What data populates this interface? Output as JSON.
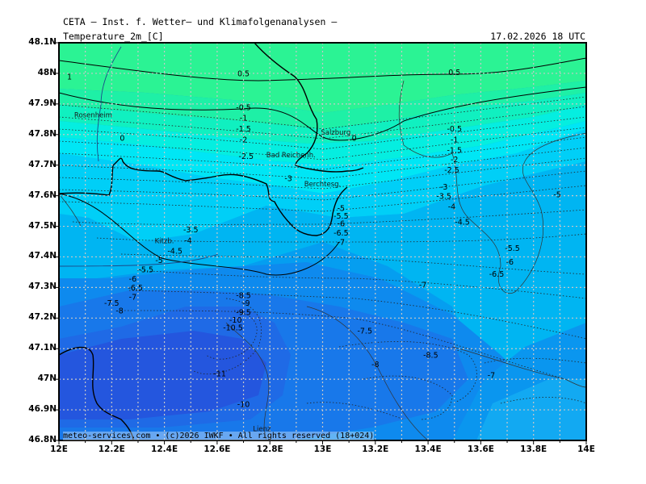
{
  "header": {
    "title": "CETA — Inst. f. Wetter— und Klimafolgenanalysen —",
    "subtitle_left": "Temperature_2m_[C]",
    "subtitle_right": "17.02.2026 18 UTC"
  },
  "footer": {
    "text": "meteo-services.com • (c)2026 IWKF • All rights reserved (18+024)"
  },
  "axes": {
    "lat_labels": [
      "48.1N",
      "48N",
      "47.9N",
      "47.8N",
      "47.7N",
      "47.6N",
      "47.5N",
      "47.4N",
      "47.3N",
      "47.2N",
      "47.1N",
      "47N",
      "46.9N",
      "46.8N"
    ],
    "lon_labels": [
      "12E",
      "12.2E",
      "12.4E",
      "12.6E",
      "12.8E",
      "13E",
      "13.2E",
      "13.4E",
      "13.6E",
      "13.8E",
      "14E"
    ]
  },
  "colors": {
    "band_0_5": "#2bf394",
    "band_0": "#1ef0a6",
    "band_m1": "#10f0c0",
    "band_m2": "#05eee0",
    "band_m3": "#00e6f5",
    "band_m4": "#00cff7",
    "band_m5": "#00b5f2",
    "band_m6": "#059ef0",
    "band_m7": "#0e8aee",
    "band_m8": "#1878ea",
    "band_m9": "#1f6ae6",
    "band_m10": "#2456de",
    "grid": "#c8c8c8",
    "contour": "#000000"
  },
  "places": [
    {
      "name": "Rosenheim",
      "lon": 12.13,
      "lat": 47.856
    },
    {
      "name": "Salzburg",
      "lon": 13.05,
      "lat": 47.8
    },
    {
      "name": "Bad Reichenh.",
      "lon": 12.88,
      "lat": 47.725
    },
    {
      "name": "Berchtesg.",
      "lon": 13.0,
      "lat": 47.63
    },
    {
      "name": "Kitzb.",
      "lon": 12.4,
      "lat": 47.445
    },
    {
      "name": "Lienz",
      "lon": 12.77,
      "lat": 46.83
    }
  ],
  "temp_labels": [
    {
      "text": "1",
      "lon": 12.04,
      "lat": 47.98
    },
    {
      "text": "0.5",
      "lon": 12.7,
      "lat": 47.99
    },
    {
      "text": "0.5",
      "lon": 13.5,
      "lat": 47.995
    },
    {
      "text": "-0.5",
      "lon": 12.7,
      "lat": 47.88
    },
    {
      "text": "-1",
      "lon": 12.7,
      "lat": 47.845
    },
    {
      "text": "-1.5",
      "lon": 12.7,
      "lat": 47.81
    },
    {
      "text": "-2",
      "lon": 12.7,
      "lat": 47.775
    },
    {
      "text": "0",
      "lon": 12.24,
      "lat": 47.78
    },
    {
      "text": "0",
      "lon": 13.12,
      "lat": 47.78
    },
    {
      "text": "-2.5",
      "lon": 12.71,
      "lat": 47.72
    },
    {
      "text": "-3",
      "lon": 12.87,
      "lat": 47.648
    },
    {
      "text": "-0.5",
      "lon": 13.5,
      "lat": 47.81
    },
    {
      "text": "-1",
      "lon": 13.5,
      "lat": 47.775
    },
    {
      "text": "-1.5",
      "lon": 13.5,
      "lat": 47.74
    },
    {
      "text": "-2",
      "lon": 13.5,
      "lat": 47.71
    },
    {
      "text": "-2.5",
      "lon": 13.49,
      "lat": 47.675
    },
    {
      "text": "-3",
      "lon": 13.46,
      "lat": 47.62
    },
    {
      "text": "-3.5",
      "lon": 13.46,
      "lat": 47.59
    },
    {
      "text": "-4",
      "lon": 13.49,
      "lat": 47.555
    },
    {
      "text": "-4.5",
      "lon": 13.53,
      "lat": 47.505
    },
    {
      "text": "-5",
      "lon": 13.89,
      "lat": 47.595
    },
    {
      "text": "-3.5",
      "lon": 12.5,
      "lat": 47.48
    },
    {
      "text": "-4",
      "lon": 12.49,
      "lat": 47.445
    },
    {
      "text": "-4.5",
      "lon": 12.44,
      "lat": 47.41
    },
    {
      "text": "-5",
      "lon": 12.38,
      "lat": 47.38
    },
    {
      "text": "-5.5",
      "lon": 12.33,
      "lat": 47.35
    },
    {
      "text": "-6",
      "lon": 12.28,
      "lat": 47.32
    },
    {
      "text": "-6.5",
      "lon": 12.29,
      "lat": 47.29
    },
    {
      "text": "-7",
      "lon": 12.28,
      "lat": 47.26
    },
    {
      "text": "-7.5",
      "lon": 12.2,
      "lat": 47.24
    },
    {
      "text": "-8",
      "lon": 12.23,
      "lat": 47.215
    },
    {
      "text": "-5",
      "lon": 13.07,
      "lat": 47.55
    },
    {
      "text": "-5.5",
      "lon": 13.07,
      "lat": 47.525
    },
    {
      "text": "-6",
      "lon": 13.07,
      "lat": 47.5
    },
    {
      "text": "-6.5",
      "lon": 13.07,
      "lat": 47.47
    },
    {
      "text": "-7",
      "lon": 13.07,
      "lat": 47.44
    },
    {
      "text": "-5.5",
      "lon": 13.72,
      "lat": 47.42
    },
    {
      "text": "-6",
      "lon": 13.71,
      "lat": 47.375
    },
    {
      "text": "-6.5",
      "lon": 13.66,
      "lat": 47.335
    },
    {
      "text": "-7",
      "lon": 13.38,
      "lat": 47.3
    },
    {
      "text": "-8.5",
      "lon": 12.7,
      "lat": 47.265
    },
    {
      "text": "-9",
      "lon": 12.71,
      "lat": 47.24
    },
    {
      "text": "-9.5",
      "lon": 12.7,
      "lat": 47.21
    },
    {
      "text": "-10",
      "lon": 12.67,
      "lat": 47.185
    },
    {
      "text": "-10.5",
      "lon": 12.66,
      "lat": 47.16
    },
    {
      "text": "-7.5",
      "lon": 13.16,
      "lat": 47.15
    },
    {
      "text": "-8.5",
      "lon": 13.41,
      "lat": 47.07
    },
    {
      "text": "-8",
      "lon": 13.2,
      "lat": 47.04
    },
    {
      "text": "-11",
      "lon": 12.61,
      "lat": 47.01
    },
    {
      "text": "-10",
      "lon": 12.7,
      "lat": 46.91
    },
    {
      "text": "-7",
      "lon": 13.64,
      "lat": 47.005
    }
  ]
}
